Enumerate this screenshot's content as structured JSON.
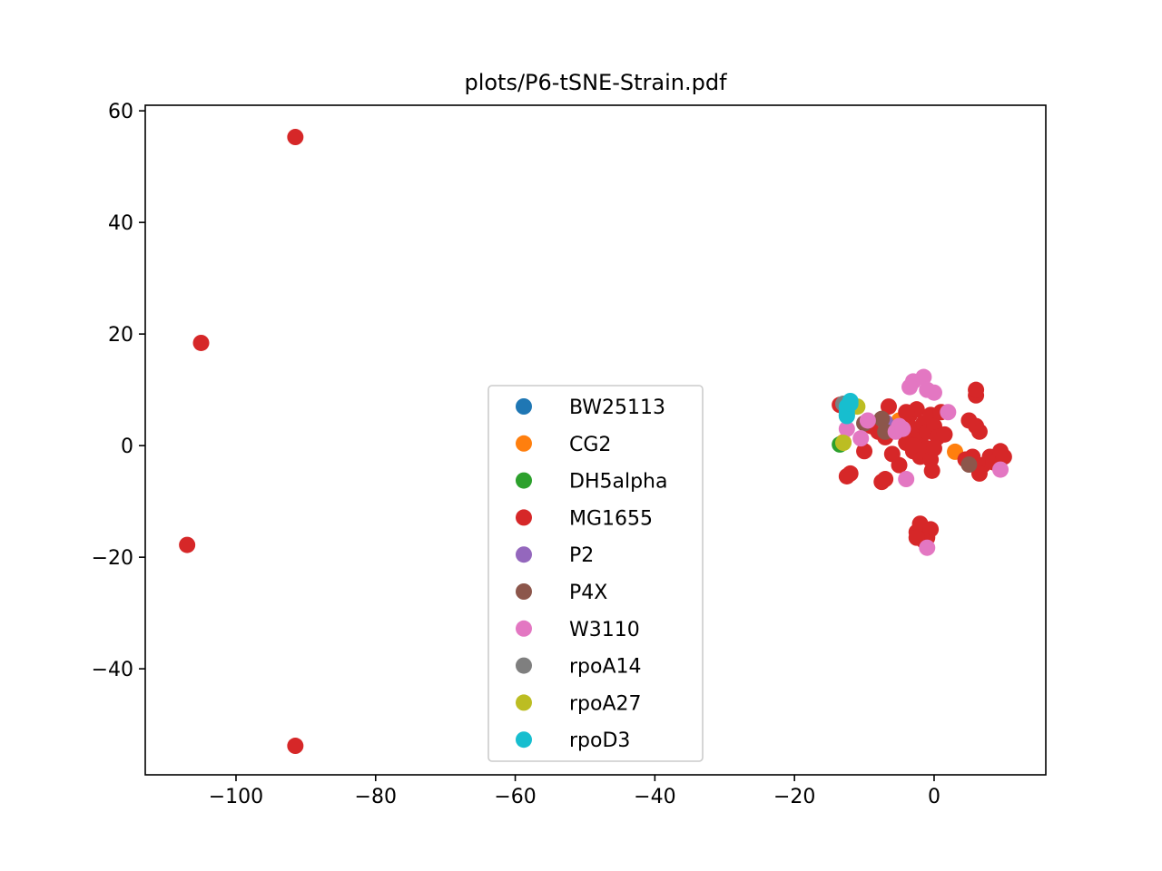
{
  "chart_data": {
    "type": "scatter",
    "title": "plots/P6-tSNE-Strain.pdf",
    "xlabel": "",
    "ylabel": "",
    "xlim": [
      -113,
      16
    ],
    "ylim": [
      -59,
      61
    ],
    "xticks": [
      -100,
      -80,
      -60,
      -40,
      -20,
      0
    ],
    "yticks": [
      -40,
      -20,
      0,
      20,
      40,
      60
    ],
    "xtick_labels": [
      "−100",
      "−80",
      "−60",
      "−40",
      "−20",
      "0"
    ],
    "ytick_labels": [
      "−40",
      "−20",
      "0",
      "20",
      "40",
      "60"
    ],
    "grid": false,
    "legend_position": "lower center",
    "series": [
      {
        "name": "BW25113",
        "color": "#1f77b4",
        "points": [
          [
            -7.5,
            3.2
          ],
          [
            -5.5,
            3.8
          ]
        ]
      },
      {
        "name": "CG2",
        "color": "#ff7f0e",
        "points": [
          [
            3.0,
            -1.1
          ],
          [
            -13.0,
            0.6
          ],
          [
            -1.0,
            -1.4
          ],
          [
            -5.0,
            4.5
          ]
        ]
      },
      {
        "name": "DH5alpha",
        "color": "#2ca02c",
        "points": [
          [
            -13.5,
            0.2
          ]
        ]
      },
      {
        "name": "MG1655",
        "color": "#d62728",
        "points": [
          [
            -91.5,
            55.3
          ],
          [
            -105,
            18.4
          ],
          [
            -107,
            -17.8
          ],
          [
            -91.5,
            -53.8
          ],
          [
            -13.5,
            7.3
          ],
          [
            -12.5,
            -5.5
          ],
          [
            -12.0,
            -5.0
          ],
          [
            -8.0,
            2.5
          ],
          [
            -6.5,
            7.0
          ],
          [
            -7.5,
            -6.5
          ],
          [
            -7.0,
            -6.0
          ],
          [
            -4.0,
            2.0
          ],
          [
            -3.5,
            5.5
          ],
          [
            -3.0,
            3.0
          ],
          [
            -2.5,
            6.5
          ],
          [
            -2.0,
            1.0
          ],
          [
            -1.5,
            4.0
          ],
          [
            -1.0,
            2.5
          ],
          [
            -0.5,
            5.5
          ],
          [
            0.0,
            3.5
          ],
          [
            0.5,
            1.5
          ],
          [
            1.0,
            6.0
          ],
          [
            1.5,
            2.0
          ],
          [
            -2.0,
            -2.0
          ],
          [
            -1.0,
            -0.5
          ],
          [
            -0.5,
            -2.5
          ],
          [
            -3.0,
            -1.0
          ],
          [
            -4.0,
            0.5
          ],
          [
            -5.0,
            -3.5
          ],
          [
            -6.0,
            -1.5
          ],
          [
            -7.0,
            1.5
          ],
          [
            -9.0,
            3.5
          ],
          [
            -10.0,
            -1.0
          ],
          [
            -0.3,
            -4.5
          ],
          [
            -2.5,
            -15.5
          ],
          [
            -2.0,
            -14.0
          ],
          [
            -1.0,
            -16.5
          ],
          [
            -0.5,
            -15.0
          ],
          [
            -1.5,
            -17.0
          ],
          [
            -2.5,
            -16.5
          ],
          [
            5.0,
            4.5
          ],
          [
            6.0,
            9.0
          ],
          [
            6.0,
            10.0
          ],
          [
            6.0,
            3.5
          ],
          [
            6.5,
            2.5
          ],
          [
            5.5,
            -2.0
          ],
          [
            7.0,
            -3.5
          ],
          [
            6.5,
            -5.0
          ],
          [
            8.0,
            -2.0
          ],
          [
            8.5,
            -3.0
          ],
          [
            9.5,
            -1.0
          ],
          [
            10.0,
            -2.0
          ],
          [
            4.5,
            -2.5
          ],
          [
            -4.0,
            6.0
          ],
          [
            -3.0,
            0.0
          ],
          [
            0.0,
            -0.5
          ]
        ]
      },
      {
        "name": "P2",
        "color": "#9467bd",
        "points": [
          [
            -7.0,
            4.2
          ]
        ]
      },
      {
        "name": "P4X",
        "color": "#8c564b",
        "points": [
          [
            5.0,
            -3.4
          ],
          [
            -7.5,
            4.8
          ],
          [
            -10.0,
            4.0
          ],
          [
            -7.0,
            2.5
          ]
        ]
      },
      {
        "name": "W3110",
        "color": "#e377c2",
        "points": [
          [
            -3.0,
            11.5
          ],
          [
            -1.5,
            12.3
          ],
          [
            -1.0,
            10.0
          ],
          [
            0.0,
            9.5
          ],
          [
            -3.5,
            10.5
          ],
          [
            2.0,
            6.0
          ],
          [
            -12.5,
            3.0
          ],
          [
            -10.5,
            1.3
          ],
          [
            -9.5,
            4.5
          ],
          [
            -5.5,
            2.5
          ],
          [
            -5.0,
            3.5
          ],
          [
            -4.5,
            3.0
          ],
          [
            -4.0,
            -6.0
          ],
          [
            -1.0,
            -18.3
          ],
          [
            9.5,
            -4.3
          ]
        ]
      },
      {
        "name": "rpoA14",
        "color": "#7f7f7f",
        "points": [
          [
            -13.0,
            7.5
          ],
          [
            -12.5,
            5.5
          ]
        ]
      },
      {
        "name": "rpoA27",
        "color": "#bcbd22",
        "points": [
          [
            -11.0,
            7.0
          ],
          [
            -13.0,
            0.5
          ]
        ]
      },
      {
        "name": "rpoD3",
        "color": "#17becf",
        "points": [
          [
            -12.0,
            8.0
          ],
          [
            -12.5,
            7.0
          ],
          [
            -12.5,
            6.0
          ],
          [
            -12.5,
            5.3
          ],
          [
            -12.0,
            7.5
          ]
        ]
      }
    ]
  }
}
